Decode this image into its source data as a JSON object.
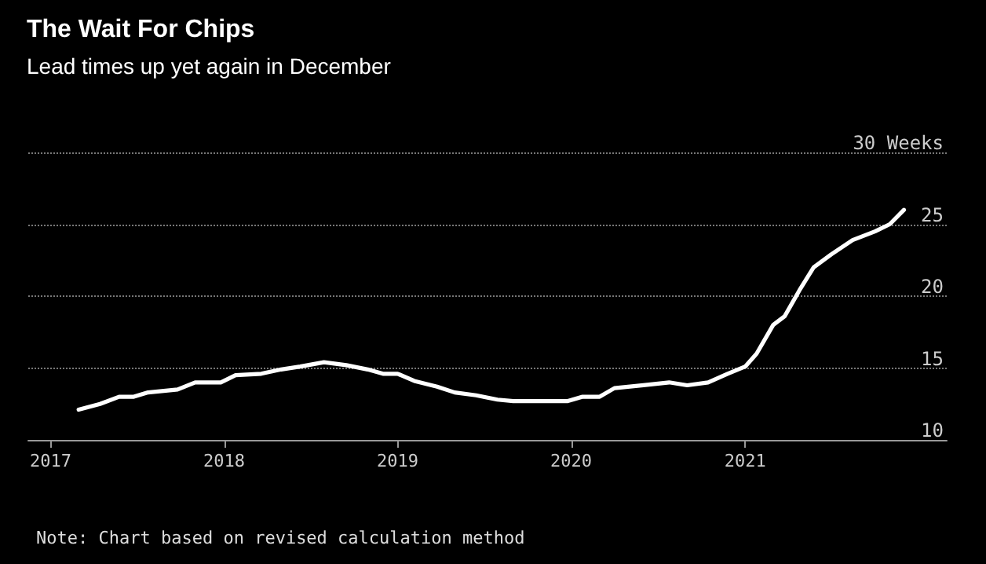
{
  "chart_data": {
    "type": "line",
    "title": "The Wait For Chips",
    "subtitle": "Lead times up yet again in December",
    "annotations": [
      "Note: Chart based on revised calculation method"
    ],
    "x": [
      "2017-03-01",
      "2017-04-15",
      "2017-05-25",
      "2017-06-25",
      "2017-07-25",
      "2017-09-25",
      "2017-11-01",
      "2017-12-25",
      "2018-01-25",
      "2018-03-20",
      "2018-05-01",
      "2018-06-10",
      "2018-07-30",
      "2018-09-15",
      "2018-10-30",
      "2018-12-01",
      "2019-01-01",
      "2019-02-05",
      "2019-03-25",
      "2019-05-01",
      "2019-06-15",
      "2019-07-30",
      "2019-09-01",
      "2019-12-25",
      "2020-01-25",
      "2020-03-01",
      "2020-04-01",
      "2020-06-01",
      "2020-07-25",
      "2020-09-01",
      "2020-10-15",
      "2020-11-25",
      "2021-01-01",
      "2021-01-25",
      "2021-03-01",
      "2021-03-25",
      "2021-04-25",
      "2021-05-25",
      "2021-07-01",
      "2021-08-15",
      "2021-10-01",
      "2021-11-01",
      "2021-12-01"
    ],
    "series": [
      {
        "color": "#ffffff",
        "values": [
          12.1,
          12.5,
          13.0,
          13.0,
          13.3,
          13.5,
          14.0,
          14.0,
          14.5,
          14.6,
          14.9,
          15.1,
          15.4,
          15.2,
          14.9,
          14.6,
          14.6,
          14.1,
          13.7,
          13.3,
          13.1,
          12.8,
          12.7,
          12.7,
          13.0,
          13.0,
          13.6,
          13.8,
          14.0,
          13.8,
          14.0,
          14.6,
          15.1,
          16.0,
          18.0,
          18.6,
          20.4,
          22.0,
          22.9,
          23.9,
          24.5,
          25.0,
          26.0
        ]
      }
    ],
    "xlim": [
      "2016-11-15",
      "2022-03-01"
    ],
    "xticks": [
      "2017",
      "2018",
      "2019",
      "2020",
      "2021"
    ],
    "ylim": [
      10,
      30
    ],
    "yticks": [
      10,
      15,
      20,
      25,
      {
        "value": 30,
        "label": "30 Weeks"
      }
    ],
    "grid": "y",
    "marker": "none",
    "line_style": "solid"
  }
}
